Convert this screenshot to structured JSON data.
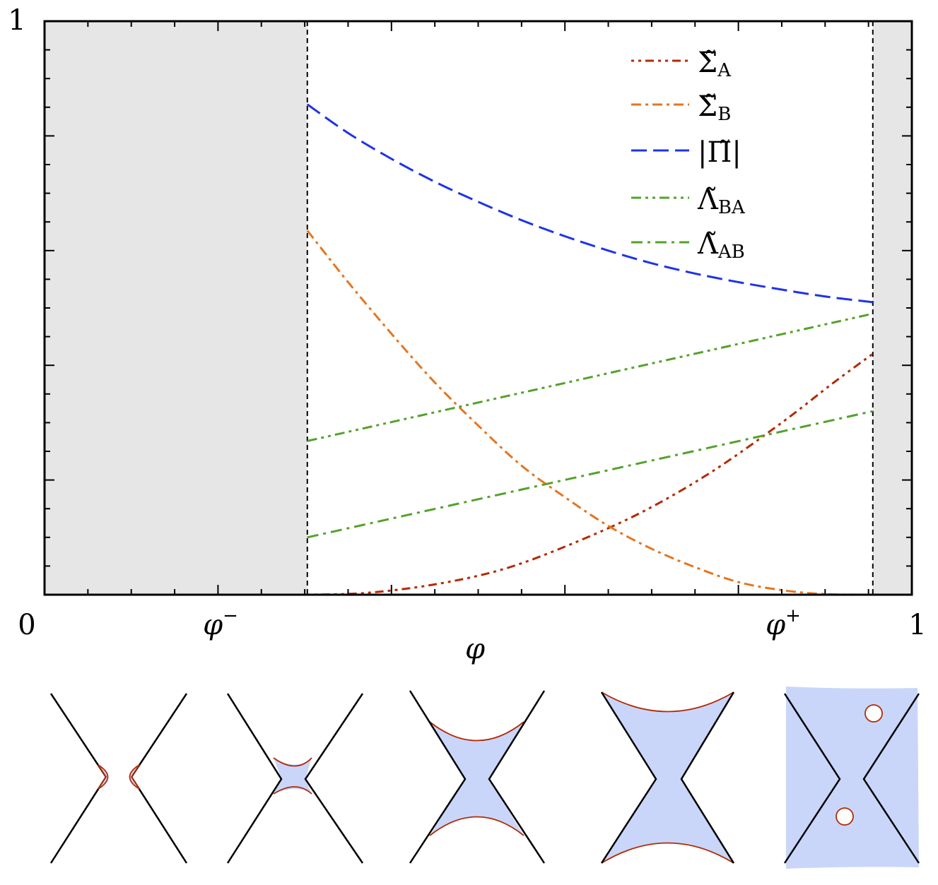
{
  "chart_data": {
    "type": "line",
    "xlabel": "φ",
    "ylabel": "",
    "xlim": [
      0,
      1
    ],
    "ylim": [
      0,
      1
    ],
    "x_ticks": [
      {
        "value": 0,
        "label": "0"
      },
      {
        "value": 0.303,
        "label": "φ",
        "sup": "−"
      },
      {
        "value": 0.955,
        "label": "φ",
        "sup": "+"
      },
      {
        "value": 1,
        "label": "1"
      }
    ],
    "y_ticks": [
      {
        "value": 1,
        "label": "1"
      }
    ],
    "phi_minus": 0.303,
    "phi_plus": 0.955,
    "shaded_regions": [
      [
        0,
        0.303
      ],
      [
        0.955,
        1
      ]
    ],
    "shade_color": "#e6e6e6",
    "legend_position": "top-right",
    "series": [
      {
        "key": "sigmaA",
        "name": "Σ̃",
        "subscript": "A",
        "color": "#b22a05",
        "dash": "4 6 4 6 12 6",
        "points": [
          [
            0.303,
            0.0
          ],
          [
            0.37,
            0.003
          ],
          [
            0.45,
            0.018
          ],
          [
            0.53,
            0.045
          ],
          [
            0.61,
            0.09
          ],
          [
            0.69,
            0.145
          ],
          [
            0.77,
            0.215
          ],
          [
            0.85,
            0.3
          ],
          [
            0.91,
            0.37
          ],
          [
            0.955,
            0.42
          ]
        ]
      },
      {
        "key": "sigmaB",
        "name": "Σ̃",
        "subscript": "B",
        "color": "#e4761f",
        "dash": "14 6 4 6",
        "points": [
          [
            0.303,
            0.635
          ],
          [
            0.35,
            0.545
          ],
          [
            0.4,
            0.455
          ],
          [
            0.45,
            0.37
          ],
          [
            0.5,
            0.295
          ],
          [
            0.55,
            0.225
          ],
          [
            0.6,
            0.17
          ],
          [
            0.65,
            0.12
          ],
          [
            0.7,
            0.08
          ],
          [
            0.75,
            0.048
          ],
          [
            0.8,
            0.022
          ],
          [
            0.85,
            0.008
          ],
          [
            0.9,
            0.001
          ],
          [
            0.955,
            0.0
          ]
        ]
      },
      {
        "key": "pi",
        "name": "|Π̃|",
        "subscript": "",
        "color": "#1f33e8",
        "dash": "22 9",
        "points": [
          [
            0.303,
            0.855
          ],
          [
            0.35,
            0.805
          ],
          [
            0.4,
            0.76
          ],
          [
            0.45,
            0.72
          ],
          [
            0.5,
            0.685
          ],
          [
            0.55,
            0.653
          ],
          [
            0.6,
            0.625
          ],
          [
            0.65,
            0.6
          ],
          [
            0.7,
            0.578
          ],
          [
            0.75,
            0.56
          ],
          [
            0.8,
            0.545
          ],
          [
            0.85,
            0.532
          ],
          [
            0.9,
            0.52
          ],
          [
            0.955,
            0.51
          ]
        ]
      },
      {
        "key": "lambdaBA",
        "name": "Λ̃",
        "subscript": "BA",
        "color": "#54a22b",
        "dash": "14 6 4 6 4 6",
        "points": [
          [
            0.303,
            0.268
          ],
          [
            0.955,
            0.49
          ]
        ]
      },
      {
        "key": "lambdaAB",
        "name": "Λ̃",
        "subscript": "AB",
        "color": "#54a22b",
        "dash": "16 7 4 7",
        "points": [
          [
            0.303,
            0.1
          ],
          [
            0.955,
            0.32
          ]
        ]
      }
    ]
  }
}
